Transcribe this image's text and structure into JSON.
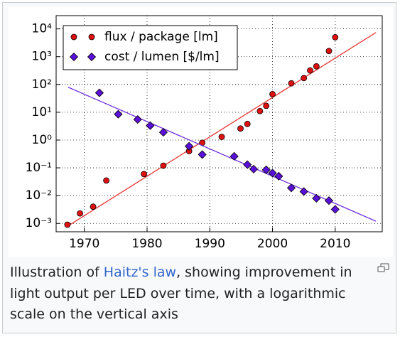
{
  "chart_data": {
    "type": "scatter",
    "log_y": true,
    "grid": true,
    "legend": "upper-left",
    "xlim": [
      1965.5,
      2017.5
    ],
    "xticks": [
      1970,
      1980,
      1990,
      2000,
      2010
    ],
    "ylim": [
      0.0005,
      30000
    ],
    "yticks": [
      {
        "value": 0.001,
        "label": "10⁻³"
      },
      {
        "value": 0.01,
        "label": "10⁻²"
      },
      {
        "value": 0.1,
        "label": "10⁻¹"
      },
      {
        "value": 1,
        "label": "10⁰"
      },
      {
        "value": 10,
        "label": "10¹"
      },
      {
        "value": 100,
        "label": "10²"
      },
      {
        "value": 1000,
        "label": "10³"
      },
      {
        "value": 10000,
        "label": "10⁴"
      }
    ],
    "series": [
      {
        "name": "flux / package [lm]",
        "color": "#e01010",
        "marker": "circle",
        "line_color": "#e83030",
        "x": [
          1967.3,
          1969.3,
          1971.4,
          1973.5,
          1979.5,
          1982.6,
          1986.7,
          1988.8,
          1991.9,
          1994.9,
          1996,
          1998,
          1999,
          2000,
          2003,
          2005,
          2006,
          2007,
          2009,
          2010
        ],
        "values": [
          0.0009,
          0.0023,
          0.004,
          0.035,
          0.06,
          0.12,
          0.4,
          0.8,
          1.3,
          2.6,
          3.8,
          11,
          17,
          45,
          110,
          170,
          320,
          450,
          1600,
          5000
        ],
        "fit": {
          "x": [
            1967.7,
            2016.5
          ],
          "values": [
            0.0009,
            7400
          ]
        }
      },
      {
        "name": "cost / lumen [$/lm]",
        "color": "#5a10d8",
        "marker": "diamond",
        "line_color": "#7030e0",
        "x": [
          1972.4,
          1975.4,
          1978.5,
          1980.5,
          1982.6,
          1986.7,
          1988.8,
          1993.9,
          1996,
          1997,
          1999,
          2000,
          2001,
          2003,
          2005,
          2007,
          2009,
          2010
        ],
        "values": [
          50,
          8.5,
          5.5,
          3.3,
          1.9,
          0.6,
          0.3,
          0.26,
          0.13,
          0.09,
          0.085,
          0.065,
          0.05,
          0.019,
          0.014,
          0.008,
          0.0066,
          0.0032
        ],
        "fit": {
          "x": [
            1967.4,
            2016.5
          ],
          "values": [
            80,
            0.0012
          ]
        }
      }
    ]
  },
  "caption": {
    "before": "Illustration of ",
    "link": "Haitz's law",
    "after": ", showing improvement in light output per LED over time, with a logarithmic scale on the vertical axis"
  }
}
